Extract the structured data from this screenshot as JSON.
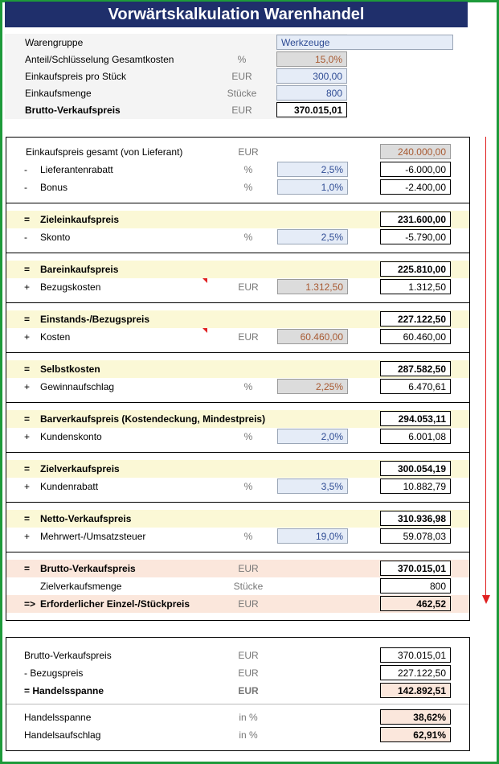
{
  "title": "Vorwärtskalkulation Warenhandel",
  "header": [
    {
      "label": "Warengruppe",
      "unit": "",
      "value": "Werkzeuge"
    },
    {
      "label": "Anteil/Schlüsselung Gesamtkosten",
      "unit": "%",
      "value": "15,0%"
    },
    {
      "label": "Einkaufspreis pro Stück",
      "unit": "EUR",
      "value": "300,00"
    },
    {
      "label": "Einkaufsmenge",
      "unit": "Stücke",
      "value": "800"
    },
    {
      "label": "Brutto-Verkaufspreis",
      "unit": "EUR",
      "value": "370.015,01"
    }
  ],
  "calc": {
    "ek_gesamt": {
      "label": "Einkaufspreis gesamt (von Lieferant)",
      "unit": "EUR",
      "result": "240.000,00"
    },
    "lieferantenrabatt": {
      "prefix": "-",
      "label": "Lieferantenrabatt",
      "unit": "%",
      "input": "2,5%",
      "result": "-6.000,00"
    },
    "bonus": {
      "prefix": "-",
      "label": "Bonus",
      "unit": "%",
      "input": "1,0%",
      "result": "-2.400,00"
    },
    "zieleinkaufspreis": {
      "prefix": "=",
      "label": "Zieleinkaufspreis",
      "result": "231.600,00"
    },
    "skonto": {
      "prefix": "-",
      "label": "Skonto",
      "unit": "%",
      "input": "2,5%",
      "result": "-5.790,00"
    },
    "bareinkaufspreis": {
      "prefix": "=",
      "label": "Bareinkaufspreis",
      "result": "225.810,00"
    },
    "bezugskosten": {
      "prefix": "+",
      "label": "Bezugskosten",
      "unit": "EUR",
      "input": "1.312,50",
      "result": "1.312,50"
    },
    "einstandspreis": {
      "prefix": "=",
      "label": "Einstands-/Bezugspreis",
      "result": "227.122,50"
    },
    "kosten": {
      "prefix": "+",
      "label": "Kosten",
      "unit": "EUR",
      "input": "60.460,00",
      "result": "60.460,00"
    },
    "selbstkosten": {
      "prefix": "=",
      "label": "Selbstkosten",
      "result": "287.582,50"
    },
    "gewinnaufschlag": {
      "prefix": "+",
      "label": "Gewinnaufschlag",
      "unit": "%",
      "input": "2,25%",
      "result": "6.470,61"
    },
    "barverkaufspreis": {
      "prefix": "=",
      "label": "Barverkaufspreis (Kostendeckung, Mindestpreis)",
      "result": "294.053,11"
    },
    "kundenskonto": {
      "prefix": "+",
      "label": "Kundenskonto",
      "unit": "%",
      "input": "2,0%",
      "result": "6.001,08"
    },
    "zielverkaufspreis": {
      "prefix": "=",
      "label": "Zielverkaufspreis",
      "result": "300.054,19"
    },
    "kundenrabatt": {
      "prefix": "+",
      "label": "Kundenrabatt",
      "unit": "%",
      "input": "3,5%",
      "result": "10.882,79"
    },
    "netto": {
      "prefix": "=",
      "label": "Netto-Verkaufspreis",
      "result": "310.936,98"
    },
    "mwst": {
      "prefix": "+",
      "label": "Mehrwert-/Umsatzsteuer",
      "unit": "%",
      "input": "19,0%",
      "result": "59.078,03"
    },
    "brutto": {
      "prefix": "=",
      "label": "Brutto-Verkaufspreis",
      "unit": "EUR",
      "result": "370.015,01"
    },
    "menge": {
      "label": "Zielverkaufsmenge",
      "unit": "Stücke",
      "result": "800"
    },
    "stueckpreis": {
      "prefix": "=>",
      "label": "Erforderlicher Einzel-/Stückpreis",
      "unit": "EUR",
      "result": "462,52"
    }
  },
  "summary": {
    "brutto": {
      "label": "Brutto-Verkaufspreis",
      "unit": "EUR",
      "value": "370.015,01"
    },
    "bezugspreis": {
      "label": "- Bezugspreis",
      "unit": "EUR",
      "value": "227.122,50"
    },
    "handelsspanne_abs": {
      "label": "= Handelsspanne",
      "unit": "EUR",
      "value": "142.892,51"
    },
    "handelsspanne_pct": {
      "label": "Handelsspanne",
      "unit": "in %",
      "value": "38,62%"
    },
    "handelsaufschlag": {
      "label": "Handelsaufschlag",
      "unit": "in %",
      "value": "62,91%"
    }
  },
  "colors": {
    "title_bg": "#1f2f6b",
    "frame": "#1e9a3a",
    "highlight": "#fbf8d6",
    "result_bg": "#fbe7dc",
    "arrow": "#e02020"
  }
}
